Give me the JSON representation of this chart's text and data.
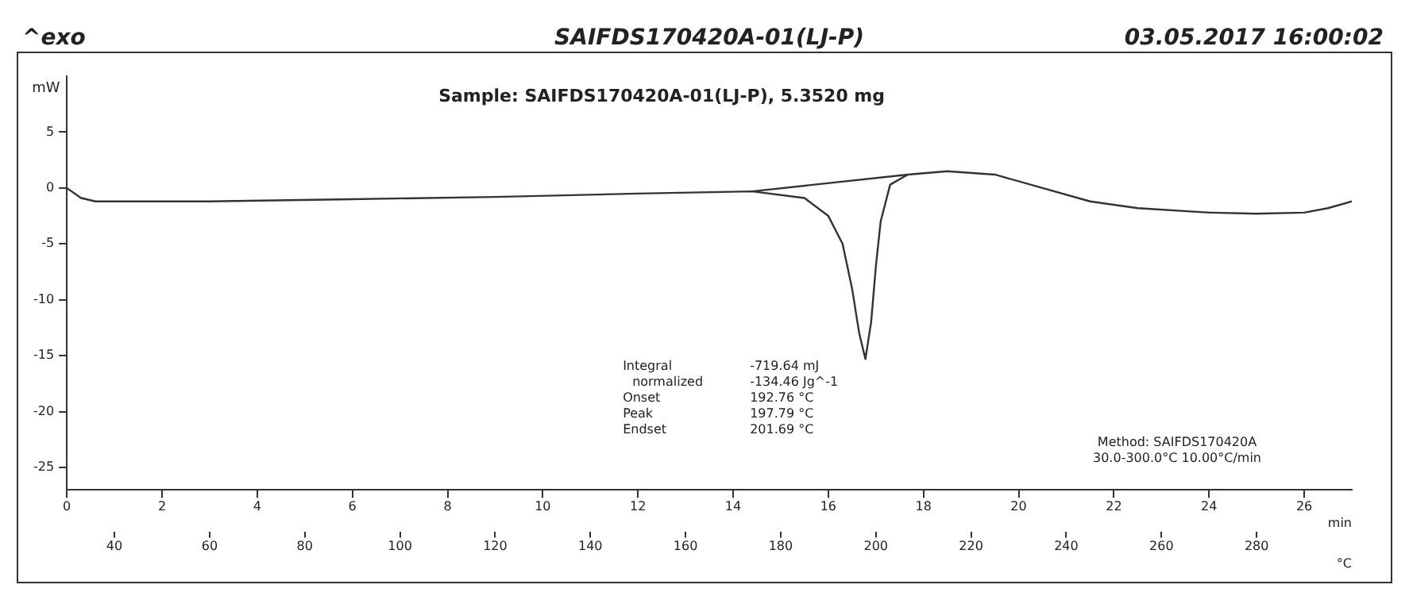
{
  "chart_data": {
    "type": "line",
    "title": "SAIFDS170420A-01(LJ-P)",
    "subtitle": "Sample: SAIFDS170420A-01(LJ-P), 5.3520 mg",
    "ylabel": "mW",
    "xlabel": "min",
    "x2label": "°C",
    "series": [
      {
        "color": "#333333",
        "x": [
          0,
          0.3,
          0.6,
          3,
          6,
          9,
          12,
          14.4,
          15.5,
          16,
          16.3,
          16.5,
          16.65,
          16.78,
          16.9,
          17,
          17.1,
          17.3,
          17.67,
          18.5,
          19.5,
          20.5,
          21.5,
          22.5,
          24,
          25,
          26,
          26.5,
          27
        ],
        "values": [
          0,
          -0.9,
          -1.2,
          -1.2,
          -1,
          -0.8,
          -0.5,
          -0.3,
          -0.9,
          -2.5,
          -5,
          -9,
          -13,
          -15.3,
          -12,
          -7,
          -3,
          0.3,
          1.2,
          1.5,
          1.2,
          0,
          -1.2,
          -1.8,
          -2.2,
          -2.3,
          -2.2,
          -1.8,
          -1.2
        ]
      },
      {
        "color": "#333333",
        "x": [
          14.4,
          17.67
        ],
        "values": [
          -0.3,
          1.2
        ]
      }
    ],
    "xlim": [
      0,
      27
    ],
    "xticks": [
      0,
      2,
      4,
      6,
      8,
      10,
      12,
      14,
      16,
      18,
      20,
      22,
      24,
      26
    ],
    "x2lim": [
      30,
      300
    ],
    "x2ticks": [
      40,
      60,
      80,
      100,
      120,
      140,
      160,
      180,
      200,
      220,
      240,
      260,
      280
    ],
    "ylim": [
      -27,
      10
    ],
    "yticks": [
      5,
      0,
      -5,
      -10,
      -15,
      -20,
      -25
    ],
    "grid": false,
    "legend": false,
    "marker": "none",
    "line_style": "solid",
    "annotations": [
      "^exo",
      "03.05.2017 16:00:02",
      "Integral",
      "-719.64 mJ",
      "normalized",
      "-134.46 Jg^-1",
      "Onset",
      "192.76 °C",
      "Peak",
      "197.79 °C",
      "Endset",
      "201.69 °C",
      "Method: SAIFDS170420A",
      "30.0-300.0°C 10.00°C/min"
    ]
  }
}
